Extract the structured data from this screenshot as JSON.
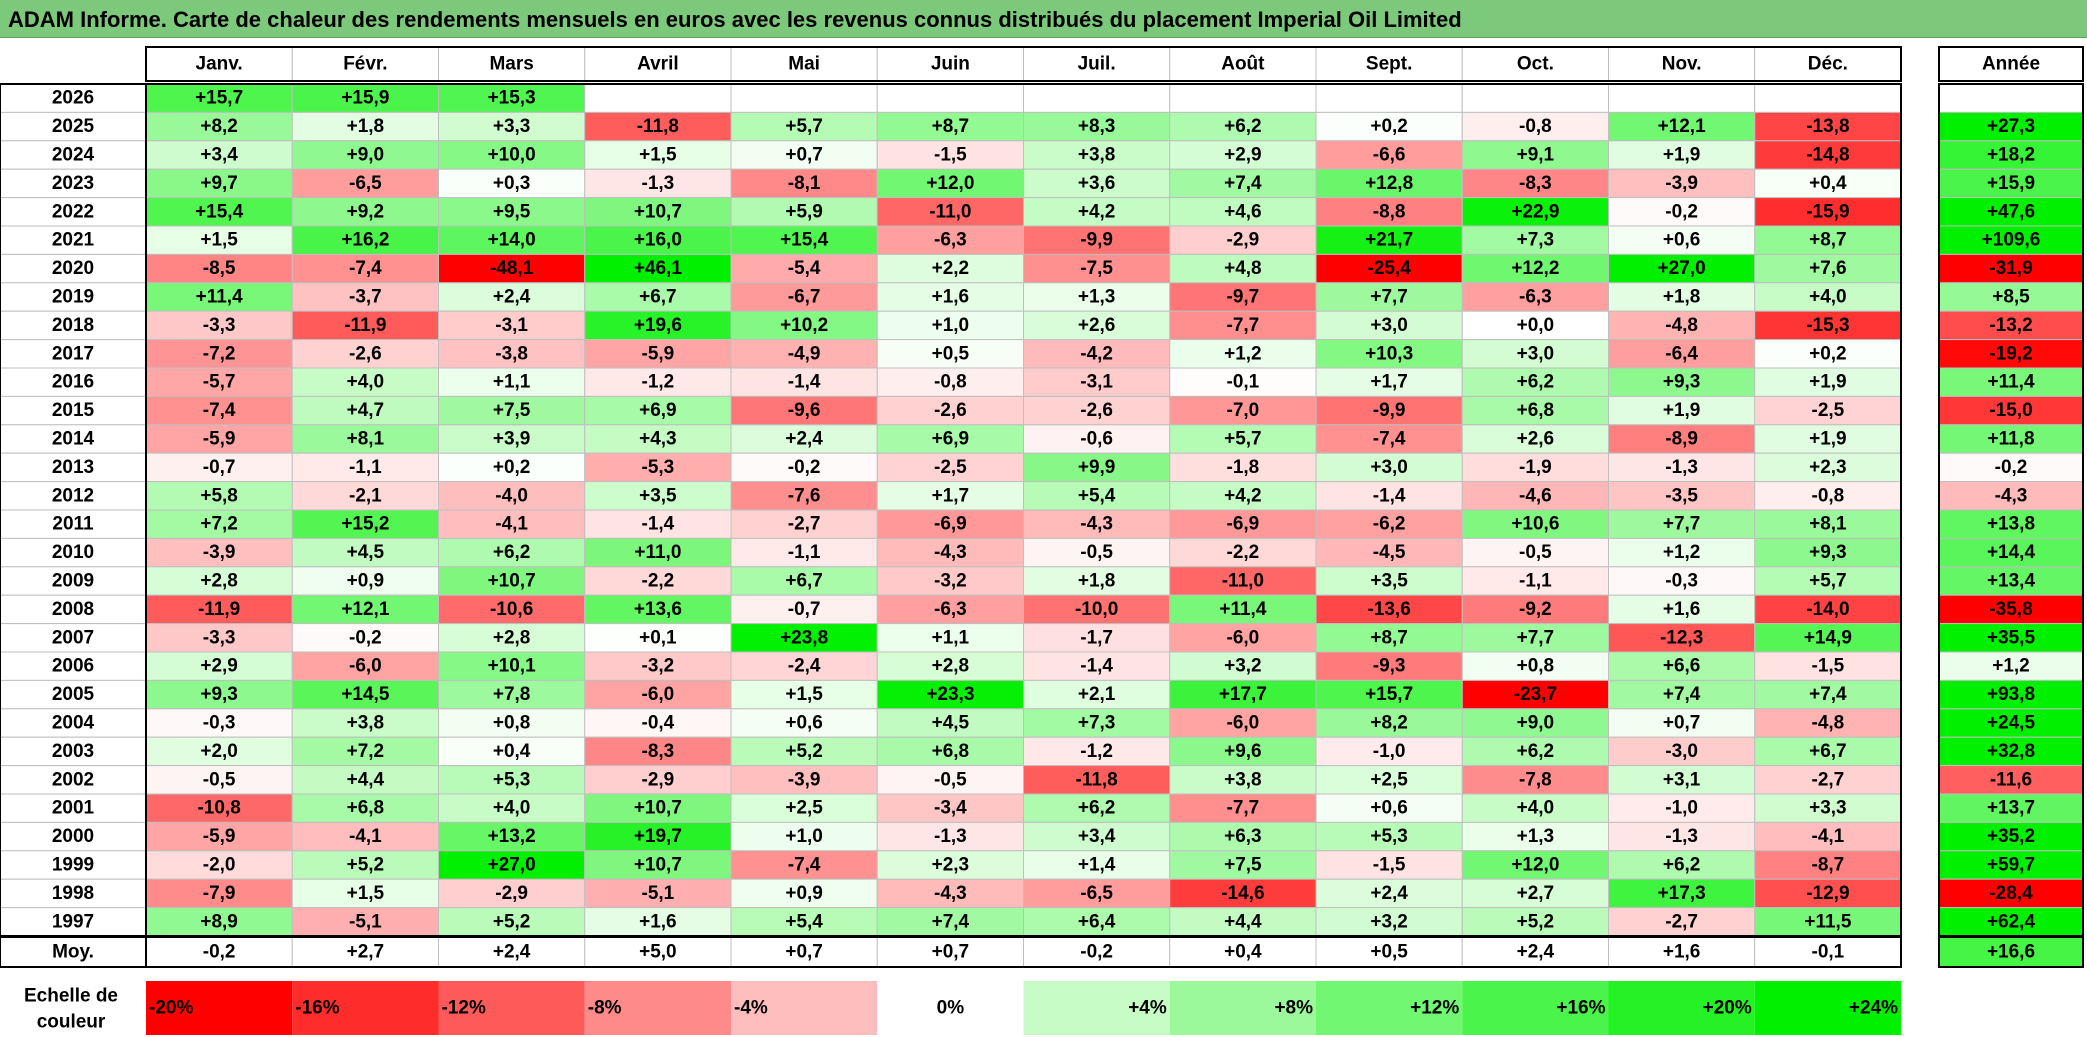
{
  "title": "ADAM Informe. Carte de chaleur des rendements mensuels en euros avec les revenus connus distribués du placement Imperial Oil Limited",
  "chart_data": {
    "type": "heatmap",
    "months": [
      "Janv.",
      "Févr.",
      "Mars",
      "Avril",
      "Mai",
      "Juin",
      "Juil.",
      "Août",
      "Sept.",
      "Oct.",
      "Nov.",
      "Déc."
    ],
    "year_label": "Année",
    "avg_label": "Moy.",
    "scale_label": [
      "Echelle de",
      "couleur"
    ],
    "rows": [
      {
        "year": "2026",
        "values": [
          "+15,7",
          "+15,9",
          "+15,3",
          "",
          "",
          "",
          "",
          "",
          "",
          "",
          "",
          ""
        ],
        "annual": ""
      },
      {
        "year": "2025",
        "values": [
          "+8,2",
          "+1,8",
          "+3,3",
          "-11,8",
          "+5,7",
          "+8,7",
          "+8,3",
          "+6,2",
          "+0,2",
          "-0,8",
          "+12,1",
          "-13,8"
        ],
        "annual": "+27,3"
      },
      {
        "year": "2024",
        "values": [
          "+3,4",
          "+9,0",
          "+10,0",
          "+1,5",
          "+0,7",
          "-1,5",
          "+3,8",
          "+2,9",
          "-6,6",
          "+9,1",
          "+1,9",
          "-14,8"
        ],
        "annual": "+18,2"
      },
      {
        "year": "2023",
        "values": [
          "+9,7",
          "-6,5",
          "+0,3",
          "-1,3",
          "-8,1",
          "+12,0",
          "+3,6",
          "+7,4",
          "+12,8",
          "-8,3",
          "-3,9",
          "+0,4"
        ],
        "annual": "+15,9"
      },
      {
        "year": "2022",
        "values": [
          "+15,4",
          "+9,2",
          "+9,5",
          "+10,7",
          "+5,9",
          "-11,0",
          "+4,2",
          "+4,6",
          "-8,8",
          "+22,9",
          "-0,2",
          "-15,9"
        ],
        "annual": "+47,6"
      },
      {
        "year": "2021",
        "values": [
          "+1,5",
          "+16,2",
          "+14,0",
          "+16,0",
          "+15,4",
          "-6,3",
          "-9,9",
          "-2,9",
          "+21,7",
          "+7,3",
          "+0,6",
          "+8,7"
        ],
        "annual": "+109,6"
      },
      {
        "year": "2020",
        "values": [
          "-8,5",
          "-7,4",
          "-48,1",
          "+46,1",
          "-5,4",
          "+2,2",
          "-7,5",
          "+4,8",
          "-25,4",
          "+12,2",
          "+27,0",
          "+7,6"
        ],
        "annual": "-31,9"
      },
      {
        "year": "2019",
        "values": [
          "+11,4",
          "-3,7",
          "+2,4",
          "+6,7",
          "-6,7",
          "+1,6",
          "+1,3",
          "-9,7",
          "+7,7",
          "-6,3",
          "+1,8",
          "+4,0"
        ],
        "annual": "+8,5"
      },
      {
        "year": "2018",
        "values": [
          "-3,3",
          "-11,9",
          "-3,1",
          "+19,6",
          "+10,2",
          "+1,0",
          "+2,6",
          "-7,7",
          "+3,0",
          "+0,0",
          "-4,8",
          "-15,3"
        ],
        "annual": "-13,2"
      },
      {
        "year": "2017",
        "values": [
          "-7,2",
          "-2,6",
          "-3,8",
          "-5,9",
          "-4,9",
          "+0,5",
          "-4,2",
          "+1,2",
          "+10,3",
          "+3,0",
          "-6,4",
          "+0,2"
        ],
        "annual": "-19,2"
      },
      {
        "year": "2016",
        "values": [
          "-5,7",
          "+4,0",
          "+1,1",
          "-1,2",
          "-1,4",
          "-0,8",
          "-3,1",
          "-0,1",
          "+1,7",
          "+6,2",
          "+9,3",
          "+1,9"
        ],
        "annual": "+11,4"
      },
      {
        "year": "2015",
        "values": [
          "-7,4",
          "+4,7",
          "+7,5",
          "+6,9",
          "-9,6",
          "-2,6",
          "-2,6",
          "-7,0",
          "-9,9",
          "+6,8",
          "+1,9",
          "-2,5"
        ],
        "annual": "-15,0"
      },
      {
        "year": "2014",
        "values": [
          "-5,9",
          "+8,1",
          "+3,9",
          "+4,3",
          "+2,4",
          "+6,9",
          "-0,6",
          "+5,7",
          "-7,4",
          "+2,6",
          "-8,9",
          "+1,9"
        ],
        "annual": "+11,8"
      },
      {
        "year": "2013",
        "values": [
          "-0,7",
          "-1,1",
          "+0,2",
          "-5,3",
          "-0,2",
          "-2,5",
          "+9,9",
          "-1,8",
          "+3,0",
          "-1,9",
          "-1,3",
          "+2,3"
        ],
        "annual": "-0,2"
      },
      {
        "year": "2012",
        "values": [
          "+5,8",
          "-2,1",
          "-4,0",
          "+3,5",
          "-7,6",
          "+1,7",
          "+5,4",
          "+4,2",
          "-1,4",
          "-4,6",
          "-3,5",
          "-0,8"
        ],
        "annual": "-4,3"
      },
      {
        "year": "2011",
        "values": [
          "+7,2",
          "+15,2",
          "-4,1",
          "-1,4",
          "-2,7",
          "-6,9",
          "-4,3",
          "-6,9",
          "-6,2",
          "+10,6",
          "+7,7",
          "+8,1"
        ],
        "annual": "+13,8"
      },
      {
        "year": "2010",
        "values": [
          "-3,9",
          "+4,5",
          "+6,2",
          "+11,0",
          "-1,1",
          "-4,3",
          "-0,5",
          "-2,2",
          "-4,5",
          "-0,5",
          "+1,2",
          "+9,3"
        ],
        "annual": "+14,4"
      },
      {
        "year": "2009",
        "values": [
          "+2,8",
          "+0,9",
          "+10,7",
          "-2,2",
          "+6,7",
          "-3,2",
          "+1,8",
          "-11,0",
          "+3,5",
          "-1,1",
          "-0,3",
          "+5,7"
        ],
        "annual": "+13,4"
      },
      {
        "year": "2008",
        "values": [
          "-11,9",
          "+12,1",
          "-10,6",
          "+13,6",
          "-0,7",
          "-6,3",
          "-10,0",
          "+11,4",
          "-13,6",
          "-9,2",
          "+1,6",
          "-14,0"
        ],
        "annual": "-35,8"
      },
      {
        "year": "2007",
        "values": [
          "-3,3",
          "-0,2",
          "+2,8",
          "+0,1",
          "+23,8",
          "+1,1",
          "-1,7",
          "-6,0",
          "+8,7",
          "+7,7",
          "-12,3",
          "+14,9"
        ],
        "annual": "+35,5"
      },
      {
        "year": "2006",
        "values": [
          "+2,9",
          "-6,0",
          "+10,1",
          "-3,2",
          "-2,4",
          "+2,8",
          "-1,4",
          "+3,2",
          "-9,3",
          "+0,8",
          "+6,6",
          "-1,5"
        ],
        "annual": "+1,2"
      },
      {
        "year": "2005",
        "values": [
          "+9,3",
          "+14,5",
          "+7,8",
          "-6,0",
          "+1,5",
          "+23,3",
          "+2,1",
          "+17,7",
          "+15,7",
          "-23,7",
          "+7,4",
          "+7,4"
        ],
        "annual": "+93,8"
      },
      {
        "year": "2004",
        "values": [
          "-0,3",
          "+3,8",
          "+0,8",
          "-0,4",
          "+0,6",
          "+4,5",
          "+7,3",
          "-6,0",
          "+8,2",
          "+9,0",
          "+0,7",
          "-4,8"
        ],
        "annual": "+24,5"
      },
      {
        "year": "2003",
        "values": [
          "+2,0",
          "+7,2",
          "+0,4",
          "-8,3",
          "+5,2",
          "+6,8",
          "-1,2",
          "+9,6",
          "-1,0",
          "+6,2",
          "-3,0",
          "+6,7"
        ],
        "annual": "+32,8"
      },
      {
        "year": "2002",
        "values": [
          "-0,5",
          "+4,4",
          "+5,3",
          "-2,9",
          "-3,9",
          "-0,5",
          "-11,8",
          "+3,8",
          "+2,5",
          "-7,8",
          "+3,1",
          "-2,7"
        ],
        "annual": "-11,6"
      },
      {
        "year": "2001",
        "values": [
          "-10,8",
          "+6,8",
          "+4,0",
          "+10,7",
          "+2,5",
          "-3,4",
          "+6,2",
          "-7,7",
          "+0,6",
          "+4,0",
          "-1,0",
          "+3,3"
        ],
        "annual": "+13,7"
      },
      {
        "year": "2000",
        "values": [
          "-5,9",
          "-4,1",
          "+13,2",
          "+19,7",
          "+1,0",
          "-1,3",
          "+3,4",
          "+6,3",
          "+5,3",
          "+1,3",
          "-1,3",
          "-4,1"
        ],
        "annual": "+35,2"
      },
      {
        "year": "1999",
        "values": [
          "-2,0",
          "+5,2",
          "+27,0",
          "+10,7",
          "-7,4",
          "+2,3",
          "+1,4",
          "+7,5",
          "-1,5",
          "+12,0",
          "+6,2",
          "-8,7"
        ],
        "annual": "+59,7"
      },
      {
        "year": "1998",
        "values": [
          "-7,9",
          "+1,5",
          "-2,9",
          "-5,1",
          "+0,9",
          "-4,3",
          "-6,5",
          "-14,6",
          "+2,4",
          "+2,7",
          "+17,3",
          "-12,9"
        ],
        "annual": "-28,4"
      },
      {
        "year": "1997",
        "values": [
          "+8,9",
          "-5,1",
          "+5,2",
          "+1,6",
          "+5,4",
          "+7,4",
          "+6,4",
          "+4,4",
          "+3,2",
          "+5,2",
          "-2,7",
          "+11,5"
        ],
        "annual": "+62,4"
      }
    ],
    "averages": [
      "-0,2",
      "+2,7",
      "+2,4",
      "+5,0",
      "+0,7",
      "+0,7",
      "-0,2",
      "+0,4",
      "+0,5",
      "+2,4",
      "+1,6",
      "-0,1"
    ],
    "annual_average": "+16,6",
    "scale": [
      "-20%",
      "-16%",
      "-12%",
      "-8%",
      "-4%",
      "0%",
      "+4%",
      "+8%",
      "+12%",
      "+16%",
      "+20%",
      "+24%"
    ]
  }
}
